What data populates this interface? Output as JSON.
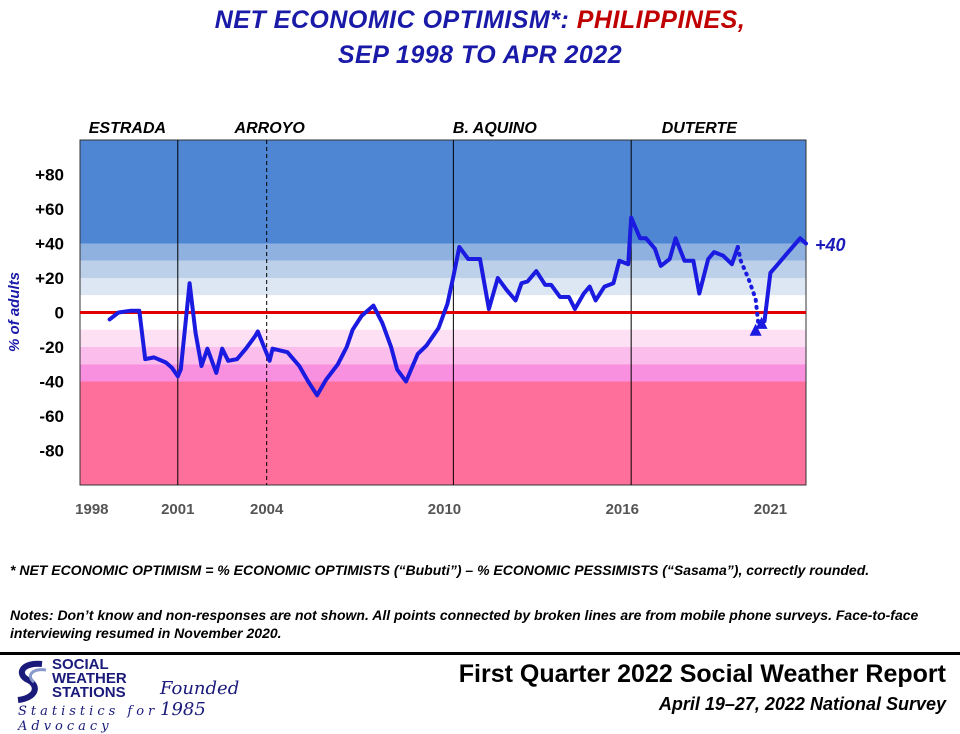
{
  "title": {
    "line1_prefix": "NET ECONOMIC OPTIMISM*:",
    "line1_country": "PHILIPPINES,",
    "line2": "SEP 1998 TO APR 2022"
  },
  "chart_data": {
    "type": "line",
    "title": "NET ECONOMIC OPTIMISM*: PHILIPPINES, SEP 1998 TO APR 2022",
    "ylabel": "% of adults",
    "ylim": [
      -100,
      100
    ],
    "y_ticks": [
      "+80",
      "+60",
      "+40",
      "+20",
      "0",
      "-20",
      "-40",
      "-60",
      "-80"
    ],
    "y_tick_values": [
      80,
      60,
      40,
      20,
      0,
      -20,
      -40,
      -60,
      -80
    ],
    "xlim": [
      1997.7,
      2022.2
    ],
    "x_tick_labels": [
      "1998",
      "2001",
      "2004",
      "2010",
      "2016",
      "2021"
    ],
    "x_tick_values": [
      1998.1,
      2001.0,
      2004.0,
      2010.0,
      2016.0,
      2021.0
    ],
    "presidents": [
      {
        "name": "ESTRADA",
        "label_x": 1999.3
      },
      {
        "name": "ARROYO",
        "label_x": 2004.1
      },
      {
        "name": "B. AQUINO",
        "label_x": 2011.7
      },
      {
        "name": "DUTERTE",
        "label_x": 2018.6
      }
    ],
    "term_boundaries": [
      {
        "x": 2001.0,
        "style": "solid"
      },
      {
        "x": 2004.0,
        "style": "dashed"
      },
      {
        "x": 2010.3,
        "style": "solid"
      },
      {
        "x": 2016.3,
        "style": "solid"
      }
    ],
    "bands": [
      {
        "from": 40,
        "to": 100,
        "color": "#4f86d4"
      },
      {
        "from": 30,
        "to": 40,
        "color": "#8fb1df"
      },
      {
        "from": 20,
        "to": 30,
        "color": "#bcd0ea"
      },
      {
        "from": 10,
        "to": 20,
        "color": "#dde7f4"
      },
      {
        "from": -10,
        "to": 10,
        "color": "#ffffff"
      },
      {
        "from": -20,
        "to": -10,
        "color": "#fde0f4"
      },
      {
        "from": -30,
        "to": -20,
        "color": "#fbbdec"
      },
      {
        "from": -40,
        "to": -30,
        "color": "#f990df"
      },
      {
        "from": -100,
        "to": -40,
        "color": "#ff6f9c"
      }
    ],
    "series": [
      {
        "name": "Net economic optimism (face-to-face)",
        "style": "solid",
        "x": [
          1998.7,
          1999.0,
          1999.4,
          1999.7,
          1999.9,
          2000.2,
          2000.6,
          2000.8,
          2001.0,
          2001.1,
          2001.4,
          2001.6,
          2001.8,
          2002.0,
          2002.3,
          2002.5,
          2002.7,
          2003.0,
          2003.3,
          2003.6,
          2003.7,
          2004.1,
          2004.2,
          2004.7,
          2005.1,
          2005.4,
          2005.7,
          2006.0,
          2006.4,
          2006.7,
          2006.9,
          2007.2,
          2007.6,
          2007.9,
          2008.2,
          2008.4,
          2008.7,
          2009.1,
          2009.4,
          2009.8,
          2010.1,
          2010.3,
          2010.5,
          2010.8,
          2011.2,
          2011.5,
          2011.8,
          2012.1,
          2012.4,
          2012.6,
          2012.8,
          2013.1,
          2013.4,
          2013.6,
          2013.9,
          2014.2,
          2014.4,
          2014.7,
          2014.9,
          2015.1,
          2015.4,
          2015.7,
          2015.9,
          2016.2,
          2016.3,
          2016.6,
          2016.8,
          2017.1,
          2017.3,
          2017.6,
          2017.8,
          2018.1,
          2018.4,
          2018.6,
          2018.9,
          2019.1,
          2019.4,
          2019.7,
          2019.9
        ],
        "y": [
          -4,
          0,
          1,
          1,
          -27,
          -26,
          -29,
          -32,
          -37,
          -33,
          17,
          -12,
          -31,
          -21,
          -35,
          -21,
          -28,
          -27,
          -21,
          -14,
          -11,
          -28,
          -21,
          -23,
          -31,
          -40,
          -48,
          -39,
          -30,
          -20,
          -10,
          -2,
          4,
          -6,
          -20,
          -33,
          -40,
          -24,
          -19,
          -9,
          5,
          21,
          38,
          31,
          31,
          2,
          20,
          13,
          7,
          17,
          18,
          24,
          16,
          16,
          9,
          9,
          2,
          11,
          15,
          7,
          15,
          17,
          30,
          28,
          55,
          43,
          43,
          37,
          27,
          31,
          43,
          30,
          30,
          11,
          31,
          35,
          33,
          28,
          38
        ]
      },
      {
        "name": "Mobile phone surveys",
        "style": "dotted",
        "x": [
          2019.9,
          2020.0,
          2020.25,
          2020.5,
          2020.6,
          2020.8
        ],
        "y": [
          38,
          30,
          20,
          8,
          -8,
          -5
        ]
      },
      {
        "name": "Net economic optimism (face-to-face resumed)",
        "style": "solid",
        "x": [
          2020.8,
          2021.0,
          2021.2,
          2021.6,
          2022.0,
          2022.2
        ],
        "y": [
          -5,
          23,
          27,
          35,
          43,
          40
        ]
      }
    ],
    "markers": [
      {
        "x": 2020.5,
        "y": -10,
        "shape": "triangle"
      },
      {
        "x": 2020.7,
        "y": -6,
        "shape": "triangle"
      }
    ],
    "annotation": {
      "text": "+40",
      "x": 2022.2,
      "y": 40
    }
  },
  "footnotes": {
    "definition": "* NET ECONOMIC OPTIMISM = % ECONOMIC OPTIMISTS (“Bubuti”) – % ECONOMIC PESSIMISTS (“Sasama”), correctly rounded.",
    "notes": "Notes: Don’t know and non-responses are not shown. All points connected by broken lines are from mobile phone surveys. Face-to-face interviewing resumed in November 2020."
  },
  "footer": {
    "logo_line1": "SOCIAL",
    "logo_line2": "WEATHER",
    "logo_line3": "STATIONS",
    "founded": "Founded 1985",
    "tagline": "Statistics for Advocacy",
    "report_title": "First Quarter 2022 Social Weather Report",
    "survey_dates": "April 19–27, 2022 National Survey"
  },
  "colors": {
    "line": "#1a1ae0",
    "zero_line": "#e00000",
    "title_blue": "#1a1aa8",
    "title_red": "#c00000",
    "annotation": "#1a1ab8"
  }
}
